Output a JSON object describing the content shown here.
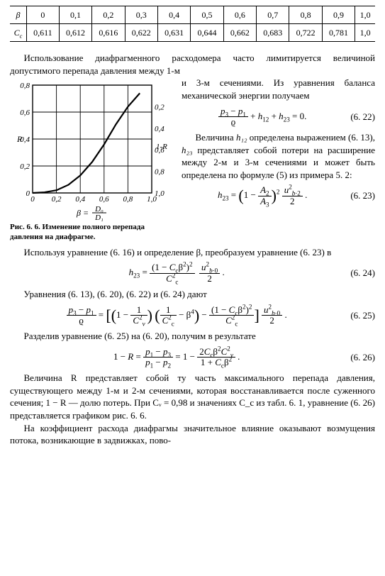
{
  "table": {
    "row1_label": "β",
    "row2_label": "C_c",
    "betas": [
      "0",
      "0,1",
      "0,2",
      "0,3",
      "0,4",
      "0,5",
      "0,6",
      "0,7",
      "0,8",
      "0,9",
      "1,0"
    ],
    "cc": [
      "0,611",
      "0,612",
      "0,616",
      "0,622",
      "0,631",
      "0,644",
      "0,662",
      "0,683",
      "0,722",
      "0,781",
      "1,0"
    ]
  },
  "para1": "Использование диафрагменного расходомера часто лимитируется величиной допустимого перепада давления между 1-м",
  "right1": "и 3-м сечениями. Из уравнения баланса механической энергии получаем",
  "eq622_label": "(6. 22)",
  "right2a": "Величина ",
  "right2b": " определена выражением (6. 13), ",
  "right2c": " представляет собой потери на расширение между 2-м и 3-м сечениями и может быть определена по формуле (5) из примера 5. 2:",
  "h12": "h₁₂",
  "h23": "h₂₃",
  "eq623_label": "(6. 23)",
  "fig_caption": "Рис. 6. 6. Изменение полного перепада давления на диафрагме.",
  "para2": "Используя уравнение (6. 16) и определение β, преобразуем уравнение (6. 23) в",
  "eq624_label": "(6. 24)",
  "para3": "Уравнения (6. 13), (6. 20), (6. 22) и (6. 24) дают",
  "eq625_label": "(6. 25)",
  "para4": "Разделив уравнение (6. 25) на (6. 20), получим в результате",
  "eq626_label": "(6. 26)",
  "para5": "Величина R представляет собой ту часть максимального перепада давления, существующего между 1-м и 2-м сечениями, которая восстанавливается после суженного сечения; 1 − R — долю потерь. При Cᵥ = 0,98 и значениях C_c из табл. 6. 1, уравнение (6. 26) представляется графиком рис. 6. 6.",
  "para6": "На коэффициент расхода диафрагмы значительное влияние оказывают возмущения потока, возникающие в задвижках, пово-",
  "chart": {
    "left_ticks": [
      "0,8",
      "0,6",
      "0,4",
      "0,2",
      "0"
    ],
    "right_ticks": [
      "0,2",
      "0,4",
      "0,6",
      "0,8",
      "1,0"
    ],
    "x_ticks": [
      "0",
      "0,2",
      "0,4",
      "0,6",
      "0,8",
      "1,0"
    ],
    "left_label": "R",
    "right_label": "1-R",
    "x_label_lhs": "β =",
    "x_label_num": "D₀",
    "x_label_den": "D₁",
    "curve": [
      [
        0,
        0
      ],
      [
        0.1,
        0.005
      ],
      [
        0.2,
        0.02
      ],
      [
        0.3,
        0.06
      ],
      [
        0.4,
        0.13
      ],
      [
        0.5,
        0.23
      ],
      [
        0.6,
        0.36
      ],
      [
        0.7,
        0.51
      ],
      [
        0.8,
        0.64
      ],
      [
        0.9,
        0.74
      ]
    ],
    "colors": {
      "axis": "#000",
      "grid": "#000",
      "curve": "#000",
      "bg": "#fff"
    },
    "axis": {
      "xlim": [
        0,
        1
      ],
      "ylim": [
        0,
        0.8
      ],
      "line_width": 2.2,
      "grid_width": 0.9
    }
  }
}
